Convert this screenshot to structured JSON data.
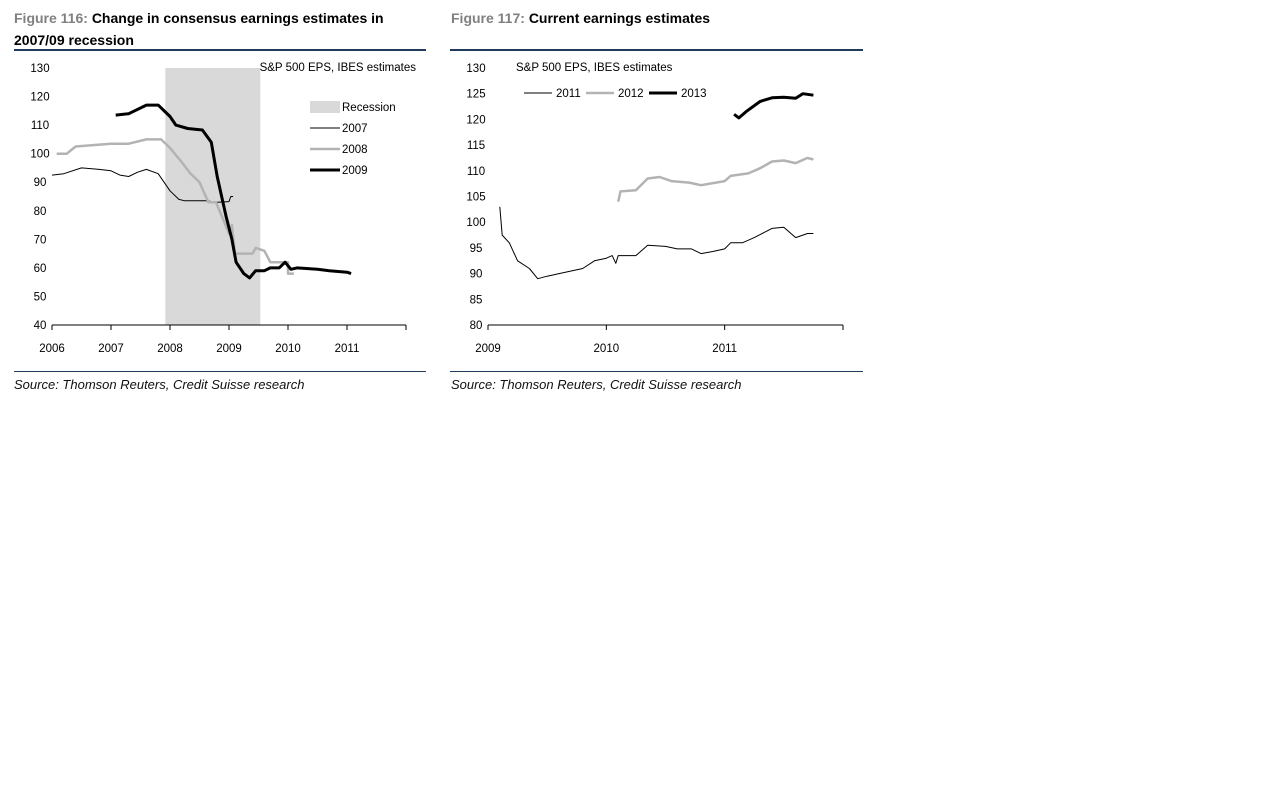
{
  "figures": [
    {
      "label": "Figure 116:",
      "title": "Change in consensus earnings estimates in 2007/09 recession",
      "source": "Source: Thomson Reuters, Credit Suisse research"
    },
    {
      "label": "Figure 117:",
      "title": "Current earnings estimates",
      "source": "Source: Thomson Reuters, Credit Suisse research"
    }
  ],
  "chart_data": [
    {
      "type": "line",
      "subtitle": "S&P 500 EPS, IBES estimates",
      "xlim": [
        2006,
        2012
      ],
      "ylim": [
        40,
        130
      ],
      "xticks": [
        "2006",
        "2007",
        "2008",
        "2009",
        "2010",
        "2011"
      ],
      "yticks": [
        40,
        50,
        60,
        70,
        80,
        90,
        100,
        110,
        120,
        130
      ],
      "legend_position": "top-right",
      "recession": {
        "label": "Recession",
        "x": [
          2007.92,
          2009.53
        ],
        "color": "#d9d9d9"
      },
      "series": [
        {
          "name": "2007",
          "color": "#000000",
          "width": 1,
          "points": [
            [
              2006.0,
              92.5
            ],
            [
              2006.2,
              93
            ],
            [
              2006.5,
              95
            ],
            [
              2006.8,
              94.5
            ],
            [
              2007.0,
              94
            ],
            [
              2007.15,
              92.5
            ],
            [
              2007.3,
              92
            ],
            [
              2007.45,
              93.5
            ],
            [
              2007.6,
              94.5
            ],
            [
              2007.8,
              93
            ],
            [
              2008.0,
              87
            ],
            [
              2008.15,
              84
            ],
            [
              2008.25,
              83.5
            ],
            [
              2008.6,
              83.5
            ],
            [
              2008.8,
              83
            ],
            [
              2009.0,
              83.2
            ],
            [
              2009.03,
              85
            ],
            [
              2009.07,
              85
            ]
          ]
        },
        {
          "name": "2008",
          "color": "#b3b3b3",
          "width": 2.5,
          "points": [
            [
              2006.08,
              100
            ],
            [
              2006.25,
              100
            ],
            [
              2006.4,
              102.5
            ],
            [
              2006.7,
              103
            ],
            [
              2007.0,
              103.5
            ],
            [
              2007.3,
              103.5
            ],
            [
              2007.6,
              105
            ],
            [
              2007.85,
              105
            ],
            [
              2008.0,
              102
            ],
            [
              2008.2,
              97
            ],
            [
              2008.35,
              93
            ],
            [
              2008.5,
              90
            ],
            [
              2008.65,
              83
            ],
            [
              2008.78,
              83
            ],
            [
              2009.0,
              72
            ],
            [
              2009.05,
              75
            ],
            [
              2009.1,
              65
            ],
            [
              2009.4,
              65
            ],
            [
              2009.45,
              67
            ],
            [
              2009.6,
              66
            ],
            [
              2009.7,
              62
            ],
            [
              2010.0,
              62
            ],
            [
              2010.0,
              58
            ],
            [
              2010.1,
              58
            ]
          ]
        },
        {
          "name": "2009",
          "color": "#000000",
          "width": 3,
          "points": [
            [
              2007.08,
              113.5
            ],
            [
              2007.3,
              114
            ],
            [
              2007.6,
              117
            ],
            [
              2007.8,
              117
            ],
            [
              2008.0,
              113
            ],
            [
              2008.1,
              110
            ],
            [
              2008.3,
              108.8
            ],
            [
              2008.55,
              108.3
            ],
            [
              2008.7,
              104
            ],
            [
              2008.8,
              92
            ],
            [
              2008.95,
              78
            ],
            [
              2009.05,
              70
            ],
            [
              2009.12,
              62
            ],
            [
              2009.25,
              58
            ],
            [
              2009.35,
              56.5
            ],
            [
              2009.45,
              59
            ],
            [
              2009.6,
              59
            ],
            [
              2009.7,
              60
            ],
            [
              2009.85,
              60
            ],
            [
              2009.95,
              62
            ],
            [
              2010.05,
              59.5
            ],
            [
              2010.15,
              60
            ],
            [
              2010.5,
              59.5
            ],
            [
              2010.7,
              59
            ],
            [
              2011.0,
              58.5
            ],
            [
              2011.07,
              58
            ]
          ]
        }
      ]
    },
    {
      "type": "line",
      "subtitle": "S&P 500 EPS, IBES estimates",
      "xlim": [
        2009,
        2012
      ],
      "ylim": [
        80,
        130
      ],
      "xticks": [
        "2009",
        "2010",
        "2011"
      ],
      "yticks": [
        80,
        85,
        90,
        95,
        100,
        105,
        110,
        115,
        120,
        125,
        130
      ],
      "legend_position": "top-left",
      "series": [
        {
          "name": "2011",
          "color": "#000000",
          "width": 1,
          "points": [
            [
              2009.1,
              103
            ],
            [
              2009.12,
              97.5
            ],
            [
              2009.18,
              96
            ],
            [
              2009.25,
              92.5
            ],
            [
              2009.35,
              91
            ],
            [
              2009.42,
              89
            ],
            [
              2009.5,
              89.5
            ],
            [
              2009.6,
              90
            ],
            [
              2009.8,
              91
            ],
            [
              2009.9,
              92.5
            ],
            [
              2010.0,
              93
            ],
            [
              2010.05,
              93.5
            ],
            [
              2010.08,
              92
            ],
            [
              2010.1,
              93.5
            ],
            [
              2010.25,
              93.5
            ],
            [
              2010.35,
              95.5
            ],
            [
              2010.5,
              95.3
            ],
            [
              2010.6,
              94.8
            ],
            [
              2010.72,
              94.8
            ],
            [
              2010.8,
              93.9
            ],
            [
              2010.9,
              94.3
            ],
            [
              2011.0,
              94.8
            ],
            [
              2011.05,
              96
            ],
            [
              2011.15,
              96
            ],
            [
              2011.25,
              97
            ],
            [
              2011.4,
              98.8
            ],
            [
              2011.5,
              99
            ],
            [
              2011.6,
              97
            ],
            [
              2011.7,
              97.8
            ],
            [
              2011.75,
              97.8
            ]
          ]
        },
        {
          "name": "2012",
          "color": "#b3b3b3",
          "width": 2.5,
          "points": [
            [
              2010.1,
              104
            ],
            [
              2010.12,
              106
            ],
            [
              2010.25,
              106.2
            ],
            [
              2010.35,
              108.5
            ],
            [
              2010.45,
              108.8
            ],
            [
              2010.55,
              108
            ],
            [
              2010.7,
              107.7
            ],
            [
              2010.8,
              107.2
            ],
            [
              2011.0,
              108
            ],
            [
              2011.05,
              109
            ],
            [
              2011.2,
              109.5
            ],
            [
              2011.3,
              110.5
            ],
            [
              2011.4,
              111.8
            ],
            [
              2011.5,
              112
            ],
            [
              2011.6,
              111.5
            ],
            [
              2011.7,
              112.5
            ],
            [
              2011.75,
              112.2
            ]
          ]
        },
        {
          "name": "2013",
          "color": "#000000",
          "width": 3,
          "points": [
            [
              2011.08,
              121
            ],
            [
              2011.12,
              120.3
            ],
            [
              2011.18,
              121.5
            ],
            [
              2011.3,
              123.5
            ],
            [
              2011.4,
              124.2
            ],
            [
              2011.5,
              124.3
            ],
            [
              2011.6,
              124.1
            ],
            [
              2011.66,
              125
            ],
            [
              2011.75,
              124.7
            ]
          ]
        }
      ]
    }
  ]
}
